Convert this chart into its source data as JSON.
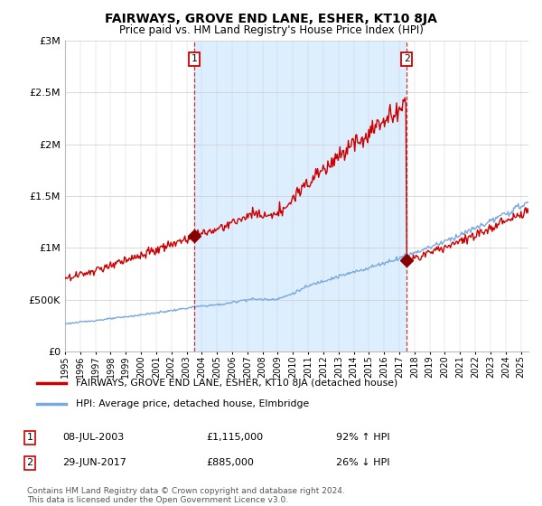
{
  "title": "FAIRWAYS, GROVE END LANE, ESHER, KT10 8JA",
  "subtitle": "Price paid vs. HM Land Registry's House Price Index (HPI)",
  "sale1_date": "08-JUL-2003",
  "sale1_price": 1115000,
  "sale1_hpi_pct": "92% ↑ HPI",
  "sale2_date": "29-JUN-2017",
  "sale2_price": 885000,
  "sale2_hpi_pct": "26% ↓ HPI",
  "legend_line1": "FAIRWAYS, GROVE END LANE, ESHER, KT10 8JA (detached house)",
  "legend_line2": "HPI: Average price, detached house, Elmbridge",
  "footnote": "Contains HM Land Registry data © Crown copyright and database right 2024.\nThis data is licensed under the Open Government Licence v3.0.",
  "red_color": "#cc0000",
  "blue_color": "#7aaadd",
  "shade_color": "#ddeeff",
  "sale_dot_color": "#880000",
  "ylim": [
    0,
    3000000
  ],
  "yticks": [
    0,
    500000,
    1000000,
    1500000,
    2000000,
    2500000,
    3000000
  ],
  "sale1_x_year": 2003.52,
  "sale2_x_year": 2017.49,
  "xmin": 1995.0,
  "xmax": 2025.5
}
